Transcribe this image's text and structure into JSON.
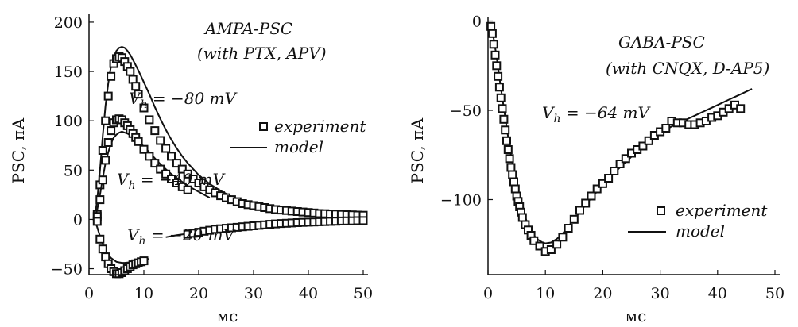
{
  "chart_data": [
    {
      "type": "scatter",
      "panel": "left",
      "xlabel": "мс",
      "ylabel": "PSC, пА",
      "xlim": [
        0,
        50
      ],
      "ylim": [
        -60,
        200
      ],
      "xticks": [
        0,
        10,
        20,
        30,
        40,
        50
      ],
      "yticks": [
        -50,
        0,
        50,
        100,
        150,
        200
      ],
      "xtick_labels": [
        "0",
        "10",
        "20",
        "30",
        "40",
        "50"
      ],
      "ytick_labels": [
        "−50",
        "0",
        "50",
        "100",
        "150",
        "200"
      ],
      "title_lines": [
        "AMPA-PSC",
        "(with PTX, APV)"
      ],
      "legend": {
        "experiment": "experiment",
        "model": "model",
        "placement": "right"
      },
      "series": [
        {
          "label": "V",
          "label_sub": "h",
          "label_value": " = −80 mV",
          "experiment": {
            "x": [
              1.5,
              2,
              2.5,
              3,
              3.5,
              4,
              4.5,
              5,
              5.5,
              6,
              6.5,
              7,
              7.5,
              8,
              8.5,
              9,
              10,
              11,
              12,
              13,
              14,
              15,
              16,
              17,
              18,
              19,
              20,
              21,
              22,
              23,
              24,
              25,
              26,
              27,
              28,
              29,
              30,
              31,
              32,
              33,
              34,
              35,
              36,
              37,
              38,
              39,
              40,
              41,
              42,
              43,
              44,
              45,
              46,
              47,
              48,
              49,
              50
            ],
            "y": [
              5,
              35,
              70,
              100,
              125,
              145,
              158,
              163,
              165,
              164,
              160,
              155,
              150,
              142,
              135,
              127,
              113,
              101,
              90,
              80,
              72,
              64,
              57,
              51,
              46,
              41,
              37,
              33,
              30,
              27,
              24,
              22,
              20,
              18,
              16,
              15,
              14,
              13,
              12,
              11,
              10,
              9.5,
              9,
              8.5,
              8,
              7.5,
              7,
              6.5,
              6,
              5.8,
              5.5,
              5.3,
              5,
              4.8,
              4.6,
              4.4,
              4.2
            ]
          },
          "model": {
            "x": [
              1,
              1.5,
              2,
              2.5,
              3,
              3.5,
              4,
              4.5,
              5,
              5.5,
              6,
              6.5,
              7,
              7.5,
              8,
              9,
              10,
              11,
              12,
              13,
              14,
              15,
              16,
              17,
              18,
              19,
              20,
              22,
              24,
              26,
              28,
              30,
              32,
              34,
              36,
              38,
              40,
              42,
              44,
              46,
              48,
              50
            ],
            "y": [
              0,
              20,
              50,
              85,
              115,
              138,
              155,
              165,
              171,
              174,
              175,
              174,
              171,
              167,
              162,
              151,
              139,
              127,
              114,
              102,
              91,
              81,
              72,
              64,
              57,
              51,
              45,
              36,
              29,
              23,
              19,
              15,
              12,
              10,
              8,
              6.5,
              5.5,
              4.5,
              3.8,
              3.2,
              2.8,
              2.4
            ]
          }
        },
        {
          "label": "V",
          "label_sub": "h",
          "label_value": " = −40 mV",
          "experiment": {
            "x": [
              1.5,
              2,
              2.5,
              3,
              3.5,
              4,
              4.5,
              5,
              5.5,
              6,
              6.5,
              7,
              7.5,
              8,
              8.5,
              9,
              10,
              11,
              12,
              13,
              14,
              15,
              16,
              17,
              18
            ],
            "y": [
              3,
              20,
              40,
              60,
              78,
              90,
              98,
              101,
              102,
              101,
              98,
              95,
              91,
              87,
              83,
              79,
              71,
              64,
              57,
              51,
              46,
              41,
              37,
              33,
              30
            ]
          },
          "model": {
            "x": [
              1,
              1.5,
              2,
              2.5,
              3,
              3.5,
              4,
              4.5,
              5,
              5.5,
              6,
              6.5,
              7,
              8,
              9,
              10,
              11,
              12,
              13,
              14,
              15,
              16,
              17,
              18,
              19,
              20,
              21,
              22
            ],
            "y": [
              0,
              10,
              25,
              42,
              57,
              68,
              77,
              83,
              86,
              88,
              89,
              88,
              87,
              84,
              79,
              74,
              68,
              62,
              56,
              51,
              46,
              42,
              38,
              34,
              31,
              28,
              25,
              22
            ]
          }
        },
        {
          "label": "V",
          "label_sub": "h",
          "label_value": " = −20 mV",
          "experiment": {
            "x": [
              1.5,
              2,
              2.5,
              3,
              3.5,
              4,
              4.5,
              5,
              5.5,
              6,
              6.5,
              7,
              7.5,
              8,
              8.5,
              9,
              9.5,
              10
            ],
            "y": [
              -2,
              -20,
              -30,
              -38,
              -45,
              -50,
              -53,
              -55,
              -55,
              -54,
              -52,
              -50,
              -48,
              -46,
              -45,
              -44,
              -43,
              -42
            ]
          },
          "model": {
            "x": [
              1,
              1.5,
              2,
              2.5,
              3,
              3.5,
              4,
              4.5,
              5,
              5.5,
              6,
              6.5,
              7,
              7.5,
              8,
              8.5,
              9,
              9.5,
              10,
              10.5,
              11
            ],
            "y": [
              0,
              -8,
              -17,
              -25,
              -31,
              -36,
              -39,
              -41,
              -43,
              -43.5,
              -44,
              -44,
              -43.8,
              -43.5,
              -43,
              -42.5,
              -42,
              -41.5,
              -41,
              -40.5,
              -40
            ]
          }
        },
        {
          "label": "",
          "experiment": {
            "x": [
              18,
              19,
              20,
              21,
              22,
              23,
              24,
              25,
              26,
              27,
              28,
              29,
              30,
              31,
              32,
              33,
              34,
              35,
              36,
              37,
              38,
              39,
              40,
              41,
              42,
              43,
              44,
              45,
              46,
              47,
              48,
              49,
              50
            ],
            "y": [
              -15,
              -14,
              -13,
              -12,
              -11,
              -10,
              -9.5,
              -9,
              -8.5,
              -8,
              -7.5,
              -7,
              -6.5,
              -6,
              -5.5,
              -5,
              -4.6,
              -4.2,
              -3.9,
              -3.6,
              -3.3,
              -3,
              -2.8,
              -2.6,
              -2.4,
              -2.2,
              -2,
              -1.8,
              -1.6,
              -1.5,
              -1.4,
              -1.3,
              -1.2
            ]
          },
          "model": {
            "x": [
              14,
              16,
              18,
              20,
              22,
              24,
              26,
              28,
              30,
              32,
              34,
              36,
              38,
              40,
              42,
              44,
              46,
              48,
              50
            ],
            "y": [
              -18,
              -16,
              -14.5,
              -13,
              -11.5,
              -10.2,
              -9,
              -8,
              -7,
              -6.2,
              -5.4,
              -4.7,
              -4.1,
              -3.6,
              -3.1,
              -2.7,
              -2.3,
              -2,
              -1.8
            ]
          }
        }
      ]
    },
    {
      "type": "scatter",
      "panel": "right",
      "xlabel": "мс",
      "ylabel": "PSC, пА",
      "xlim": [
        0,
        50
      ],
      "ylim": [
        -140,
        0
      ],
      "xticks": [
        0,
        10,
        20,
        30,
        40,
        50
      ],
      "yticks": [
        -100,
        -50,
        0
      ],
      "xtick_labels": [
        "0",
        "10",
        "20",
        "30",
        "40",
        "50"
      ],
      "ytick_labels": [
        "−100",
        "−50",
        "0"
      ],
      "title_lines": [
        "GABA-PSC",
        "(with CNQX, D-AP5)"
      ],
      "legend": {
        "experiment": "experiment",
        "model": "model",
        "placement": "bottom-right"
      },
      "series": [
        {
          "label": "V",
          "label_sub": "h",
          "label_value": " = −64 mV",
          "experiment": {
            "x": [
              0.5,
              0.75,
              1,
              1.25,
              1.5,
              1.75,
              2,
              2.25,
              2.5,
              2.75,
              3,
              3.25,
              3.5,
              3.75,
              4,
              4.25,
              4.5,
              4.75,
              5,
              5.25,
              5.5,
              5.75,
              6,
              6.5,
              7,
              7.5,
              8,
              9,
              10,
              11,
              12,
              13,
              14,
              15,
              16,
              17,
              18,
              19,
              20,
              21,
              22,
              23,
              24,
              25,
              26,
              27,
              28,
              29,
              30,
              31,
              32,
              33,
              34,
              35,
              36,
              37,
              38,
              39,
              40,
              41,
              42,
              43,
              44
            ],
            "y": [
              -3,
              -7,
              -13,
              -19,
              -25,
              -31,
              -37,
              -43,
              -49,
              -55,
              -61,
              -67,
              -72,
              -77,
              -82,
              -86,
              -90,
              -94,
              -98,
              -101,
              -104,
              -107,
              -110,
              -114,
              -117,
              -120,
              -123,
              -126,
              -129,
              -128,
              -125,
              -121,
              -116,
              -111,
              -106,
              -102,
              -98,
              -94,
              -91,
              -88,
              -84,
              -80,
              -77,
              -74,
              -72,
              -70,
              -67,
              -64,
              -62,
              -60,
              -56,
              -57,
              -57,
              -58,
              -58,
              -57,
              -56,
              -54,
              -53,
              -51,
              -49,
              -47,
              -49
            ]
          },
          "model": {
            "x": [
              0.5,
              1,
              1.5,
              2,
              2.5,
              3,
              3.5,
              4,
              4.5,
              5,
              5.5,
              6,
              6.5,
              7,
              7.5,
              8,
              8.5,
              9,
              9.5,
              10,
              11,
              12,
              13,
              14,
              15,
              16,
              18,
              20,
              22,
              24,
              26,
              28,
              30,
              32,
              34,
              36,
              38,
              40,
              42,
              44,
              46
            ],
            "y": [
              -2,
              -10,
              -20,
              -32,
              -43,
              -54,
              -65,
              -75,
              -84,
              -92,
              -99,
              -105,
              -110,
              -114,
              -117,
              -120,
              -122,
              -123,
              -124,
              -124.5,
              -124,
              -122,
              -119,
              -115,
              -111,
              -107,
              -99,
              -92,
              -85,
              -79,
              -73,
              -68,
              -63,
              -59,
              -56,
              -53,
              -50,
              -47,
              -44,
              -41,
              -38
            ]
          }
        }
      ]
    }
  ]
}
